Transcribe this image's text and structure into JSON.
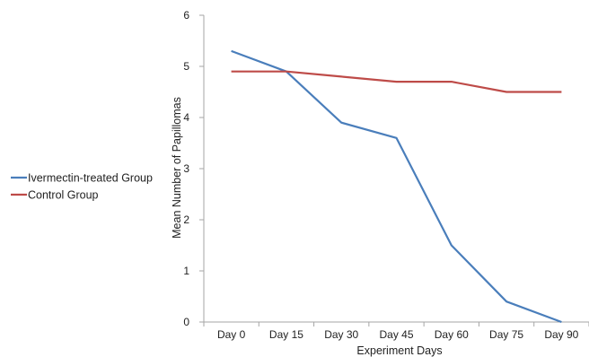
{
  "chart_data": {
    "type": "line",
    "categories": [
      "Day 0",
      "Day 15",
      "Day 30",
      "Day 45",
      "Day 60",
      "Day 75",
      "Day 90"
    ],
    "series": [
      {
        "name": "Ivermectin-treated Group",
        "color": "#4a7ebb",
        "values": [
          5.3,
          4.9,
          3.9,
          3.6,
          1.5,
          0.4,
          0.0
        ]
      },
      {
        "name": "Control Group",
        "color": "#be4b48",
        "values": [
          4.9,
          4.9,
          4.8,
          4.7,
          4.7,
          4.5,
          4.5
        ]
      }
    ],
    "xlabel": "Experiment Days",
    "ylabel": "Mean Number of Papillomas",
    "ylim": [
      0,
      6
    ],
    "yticks": [
      "0",
      "1",
      "2",
      "3",
      "4",
      "5",
      "6"
    ],
    "grid": false,
    "legend_position": "left",
    "axis_color": "#a6a6a6"
  }
}
